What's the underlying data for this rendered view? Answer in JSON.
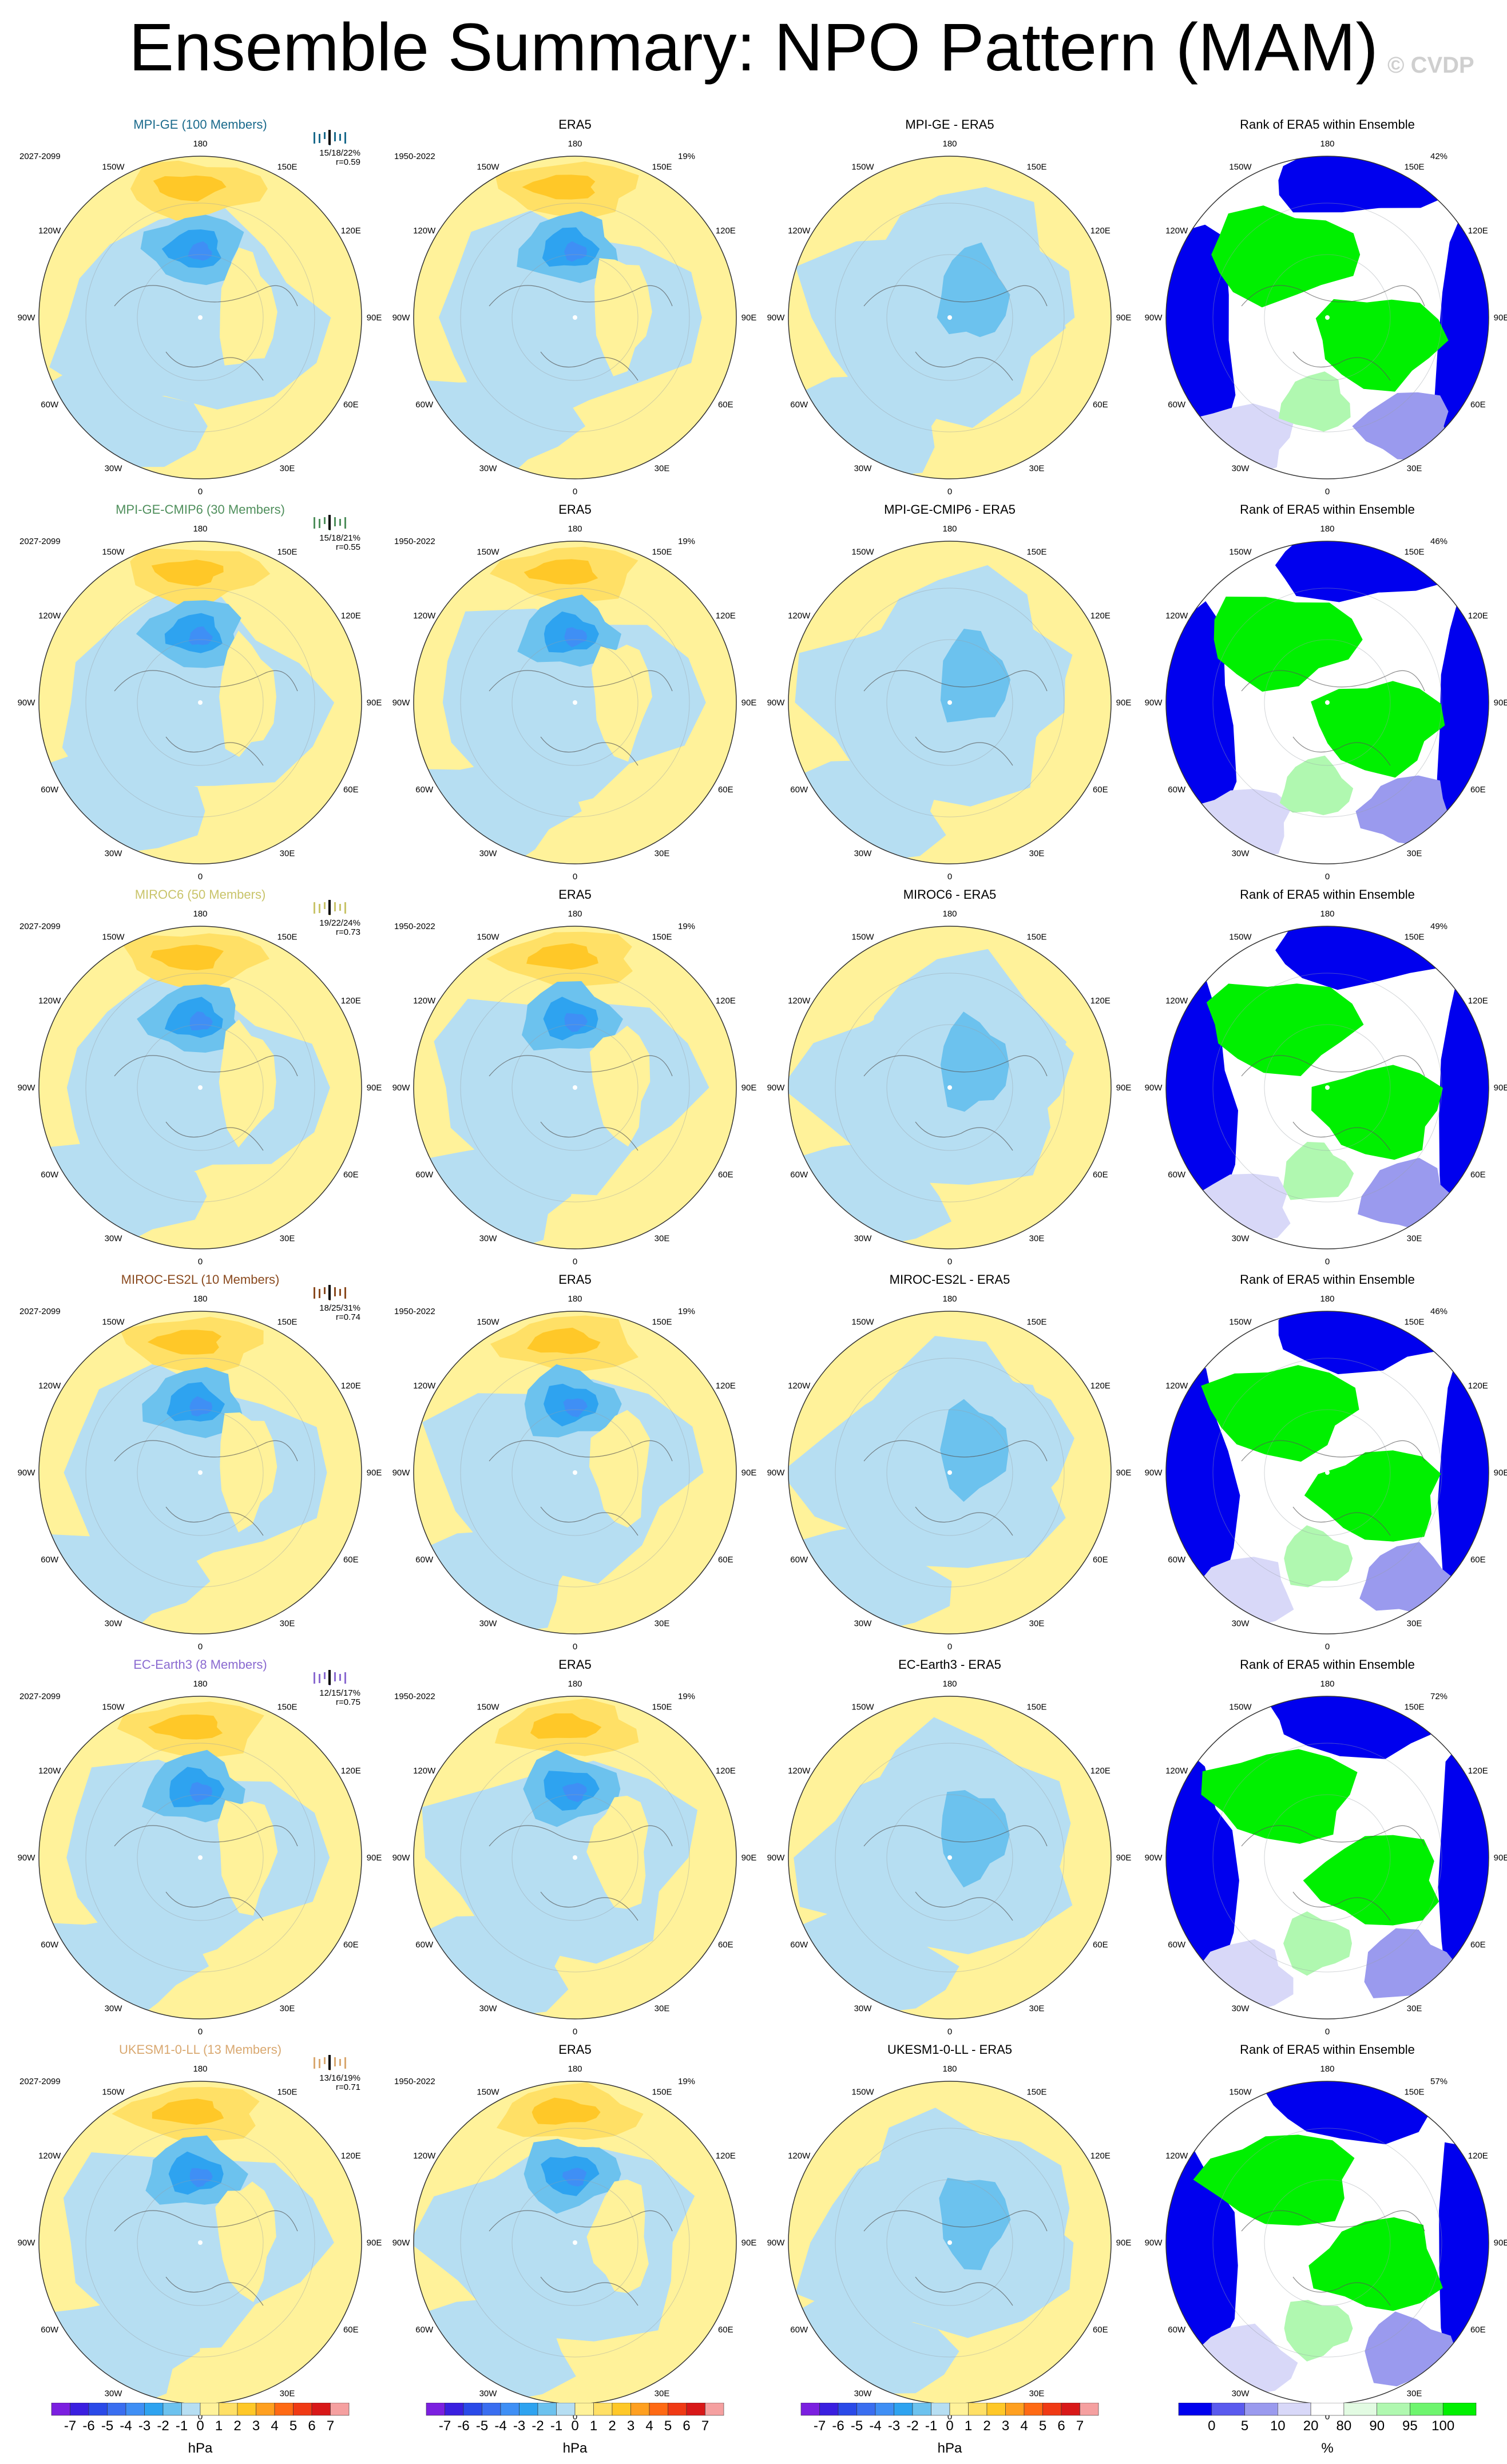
{
  "title": "Ensemble Summary: NPO Pattern (MAM)",
  "watermark": "© CVDP",
  "obs_name": "ERA5",
  "obs_period": "1950-2022",
  "obs_pct": "19%",
  "rank_title": "Rank of ERA5 within Ensemble",
  "lon_labels": [
    "180",
    "150E",
    "120E",
    "90E",
    "60E",
    "30E",
    "0",
    "30W",
    "60W",
    "90W",
    "120W",
    "150W"
  ],
  "models": [
    {
      "title": "MPI-GE (100 Members)",
      "short": "MPI-GE",
      "color": "#1a6a8c",
      "period": "2027-2099",
      "stats_line1": "15/18/22%",
      "stats_line2": "r=0.59",
      "rank_pct": "42%"
    },
    {
      "title": "MPI-GE-CMIP6 (30 Members)",
      "short": "MPI-GE-CMIP6",
      "color": "#4f8f5c",
      "period": "2027-2099",
      "stats_line1": "15/18/21%",
      "stats_line2": "r=0.55",
      "rank_pct": "46%"
    },
    {
      "title": "MIROC6 (50 Members)",
      "short": "MIROC6",
      "color": "#c9c46a",
      "period": "2027-2099",
      "stats_line1": "19/22/24%",
      "stats_line2": "r=0.73",
      "rank_pct": "49%"
    },
    {
      "title": "MIROC-ES2L (10 Members)",
      "short": "MIROC-ES2L",
      "color": "#8a4a1f",
      "period": "2027-2099",
      "stats_line1": "18/25/31%",
      "stats_line2": "r=0.74",
      "rank_pct": "46%"
    },
    {
      "title": "EC-Earth3 (8 Members)",
      "short": "EC-Earth3",
      "color": "#8a6ad0",
      "period": "2027-2099",
      "stats_line1": "12/15/17%",
      "stats_line2": "r=0.75",
      "rank_pct": "72%"
    },
    {
      "title": "UKESM1-0-LL (13 Members)",
      "short": "UKESM1-0-LL",
      "color": "#d9a870",
      "period": "2027-2099",
      "stats_line1": "13/16/19%",
      "stats_line2": "r=0.71",
      "rank_pct": "57%"
    }
  ],
  "colorbar_hpa": {
    "unit": "hPa",
    "labels": [
      "-7",
      "-6",
      "-5",
      "-4",
      "-3",
      "-2",
      "-1",
      "0",
      "1",
      "2",
      "3",
      "4",
      "5",
      "6",
      "7"
    ],
    "colors": [
      "#7b1fe0",
      "#3a1fe0",
      "#2a4ae8",
      "#3a6ef0",
      "#3f8ff5",
      "#2ea3f0",
      "#6cc2ee",
      "#b6def2",
      "#fff29a",
      "#ffe066",
      "#ffc828",
      "#ffa020",
      "#ff6a14",
      "#f03a14",
      "#d81818",
      "#f5a0a0"
    ]
  },
  "colorbar_rank": {
    "unit": "%",
    "labels": [
      "0",
      "5",
      "10",
      "20",
      "80",
      "90",
      "95",
      "100"
    ],
    "colors": [
      "#0000ee",
      "#5a5aee",
      "#9a9aee",
      "#d8d8f8",
      "#ffffff",
      "#e2fbe2",
      "#b0f8b0",
      "#6ef56e",
      "#00f000"
    ]
  }
}
